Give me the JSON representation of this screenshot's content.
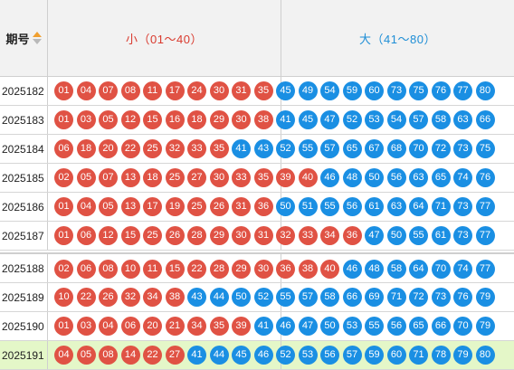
{
  "header": {
    "period_label": "期号",
    "small_label": "小（01～40）",
    "big_label": "大（41～80）"
  },
  "colors": {
    "small_ball": "#e05244",
    "big_ball": "#1a8fe3",
    "highlight_row": "#e4f7c8"
  },
  "icons": {
    "sort": "sort-arrows-icon"
  },
  "rows": [
    {
      "period": "2025182",
      "numbers": [
        "01",
        "04",
        "07",
        "08",
        "11",
        "17",
        "24",
        "30",
        "31",
        "35",
        "45",
        "49",
        "54",
        "59",
        "60",
        "73",
        "75",
        "76",
        "77",
        "80"
      ]
    },
    {
      "period": "2025183",
      "numbers": [
        "01",
        "03",
        "05",
        "12",
        "15",
        "16",
        "18",
        "29",
        "30",
        "38",
        "41",
        "45",
        "47",
        "52",
        "53",
        "54",
        "57",
        "58",
        "63",
        "66"
      ]
    },
    {
      "period": "2025184",
      "numbers": [
        "06",
        "18",
        "20",
        "22",
        "25",
        "32",
        "33",
        "35",
        "41",
        "43",
        "52",
        "55",
        "57",
        "65",
        "67",
        "68",
        "70",
        "72",
        "73",
        "75"
      ]
    },
    {
      "period": "2025185",
      "numbers": [
        "02",
        "05",
        "07",
        "13",
        "18",
        "25",
        "27",
        "30",
        "33",
        "35",
        "39",
        "40",
        "46",
        "48",
        "50",
        "56",
        "63",
        "65",
        "74",
        "76"
      ]
    },
    {
      "period": "2025186",
      "numbers": [
        "01",
        "04",
        "05",
        "13",
        "17",
        "19",
        "25",
        "26",
        "31",
        "36",
        "50",
        "51",
        "55",
        "56",
        "61",
        "63",
        "64",
        "71",
        "73",
        "77"
      ]
    },
    {
      "period": "2025187",
      "numbers": [
        "01",
        "06",
        "12",
        "15",
        "25",
        "26",
        "28",
        "29",
        "30",
        "31",
        "32",
        "33",
        "34",
        "36",
        "47",
        "50",
        "55",
        "61",
        "73",
        "77"
      ]
    },
    {
      "period": "2025188",
      "numbers": [
        "02",
        "06",
        "08",
        "10",
        "11",
        "15",
        "22",
        "28",
        "29",
        "30",
        "36",
        "38",
        "40",
        "46",
        "48",
        "58",
        "64",
        "70",
        "74",
        "77"
      ]
    },
    {
      "period": "2025189",
      "numbers": [
        "10",
        "22",
        "26",
        "32",
        "34",
        "38",
        "43",
        "44",
        "50",
        "52",
        "55",
        "57",
        "58",
        "66",
        "69",
        "71",
        "72",
        "73",
        "76",
        "79"
      ]
    },
    {
      "period": "2025190",
      "numbers": [
        "01",
        "03",
        "04",
        "06",
        "20",
        "21",
        "34",
        "35",
        "39",
        "41",
        "46",
        "47",
        "50",
        "53",
        "55",
        "56",
        "65",
        "66",
        "70",
        "79"
      ]
    },
    {
      "period": "2025191",
      "numbers": [
        "04",
        "05",
        "08",
        "14",
        "22",
        "27",
        "41",
        "44",
        "45",
        "46",
        "52",
        "53",
        "56",
        "57",
        "59",
        "60",
        "71",
        "78",
        "79",
        "80"
      ]
    }
  ]
}
